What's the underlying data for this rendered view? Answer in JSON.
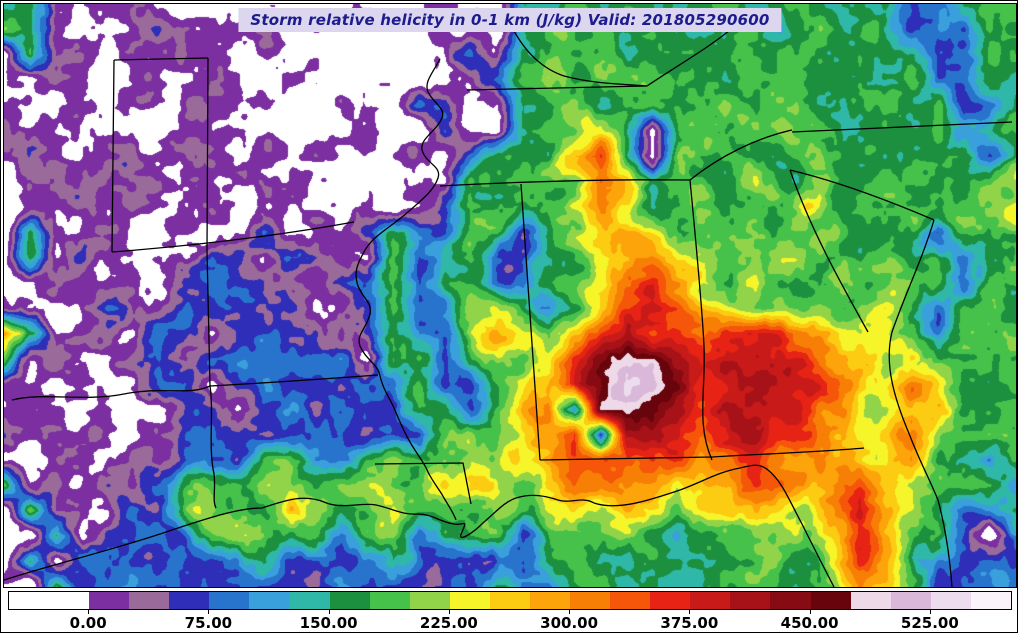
{
  "title": "Storm relative helicity in 0-1 km (J/kg) Valid: 201805290600",
  "chart_data": {
    "type": "heatmap",
    "title": "Storm relative helicity in 0-1 km (J/kg)",
    "valid": "201805290600",
    "units": "J/kg",
    "legend_position": "bottom",
    "colorbar": {
      "vmin": -50,
      "vmax": 575,
      "band_size": 25,
      "tick_labels": [
        "0.00",
        "75.00",
        "150.00",
        "225.00",
        "300.00",
        "375.00",
        "450.00",
        "525.00"
      ],
      "tick_values": [
        0,
        75,
        150,
        225,
        300,
        375,
        450,
        525
      ],
      "colors": [
        "#ffffff",
        "#ffffff",
        "#7b2fa0",
        "#9a6a9a",
        "#2e2eb8",
        "#2874cd",
        "#3aa0dc",
        "#2fb8a8",
        "#1d9040",
        "#46c24a",
        "#91d44a",
        "#f5f52a",
        "#fccc12",
        "#fca40a",
        "#f87f06",
        "#f5560a",
        "#e62314",
        "#c81a18",
        "#a61218",
        "#870b12",
        "#67040c",
        "#edd9e8",
        "#d9b8d9",
        "#ecdcee",
        "#faf3fa"
      ]
    },
    "grid_rows": 24,
    "grid_cols": 40,
    "grid_encoding": "color band indices; helicity value range of band i is (i*25-50) to (i*25-25) J/kg",
    "grid": [
      [
        9,
        9,
        2,
        1,
        2,
        3,
        2,
        1,
        2,
        2,
        1,
        2,
        1,
        1,
        1,
        2,
        2,
        2,
        1,
        1,
        8,
        9,
        9,
        8,
        9,
        9,
        8,
        9,
        9,
        8,
        9,
        9,
        8,
        9,
        9,
        5,
        5,
        9,
        9,
        9
      ],
      [
        9,
        9,
        2,
        1,
        1,
        2,
        3,
        2,
        1,
        2,
        3,
        2,
        1,
        1,
        1,
        1,
        2,
        2,
        2,
        1,
        8,
        9,
        10,
        9,
        8,
        9,
        9,
        8,
        9,
        9,
        8,
        9,
        9,
        8,
        9,
        5,
        5,
        6,
        9,
        9
      ],
      [
        2,
        9,
        2,
        3,
        1,
        2,
        2,
        3,
        2,
        2,
        2,
        1,
        1,
        1,
        1,
        1,
        1,
        2,
        5,
        2,
        8,
        9,
        9,
        10,
        9,
        8,
        9,
        9,
        9,
        8,
        9,
        9,
        8,
        9,
        9,
        9,
        5,
        5,
        9,
        9
      ],
      [
        2,
        2,
        3,
        2,
        2,
        3,
        2,
        2,
        3,
        2,
        1,
        1,
        1,
        1,
        1,
        1,
        1,
        1,
        2,
        5,
        9,
        10,
        9,
        9,
        9,
        9,
        10,
        9,
        8,
        9,
        9,
        8,
        9,
        9,
        9,
        9,
        5,
        6,
        9,
        8
      ],
      [
        3,
        2,
        2,
        3,
        2,
        2,
        2,
        3,
        2,
        2,
        2,
        1,
        1,
        2,
        1,
        1,
        5,
        5,
        1,
        2,
        9,
        9,
        11,
        9,
        10,
        9,
        9,
        9,
        10,
        9,
        9,
        9,
        8,
        9,
        9,
        9,
        9,
        5,
        5,
        9
      ],
      [
        3,
        3,
        2,
        2,
        3,
        2,
        2,
        2,
        2,
        3,
        2,
        2,
        1,
        1,
        2,
        1,
        1,
        5,
        2,
        2,
        9,
        10,
        9,
        12,
        9,
        1,
        9,
        10,
        9,
        9,
        10,
        9,
        9,
        8,
        9,
        9,
        9,
        5,
        9,
        9
      ],
      [
        2,
        3,
        3,
        2,
        2,
        3,
        2,
        2,
        3,
        2,
        2,
        2,
        2,
        1,
        1,
        2,
        2,
        2,
        5,
        9,
        9,
        9,
        14,
        16,
        9,
        1,
        10,
        9,
        9,
        9,
        9,
        10,
        9,
        9,
        9,
        9,
        9,
        9,
        5,
        9
      ],
      [
        2,
        2,
        3,
        3,
        2,
        2,
        3,
        2,
        2,
        2,
        3,
        2,
        2,
        2,
        1,
        1,
        2,
        2,
        9,
        9,
        10,
        9,
        9,
        15,
        12,
        9,
        9,
        10,
        9,
        11,
        9,
        9,
        9,
        9,
        10,
        9,
        9,
        9,
        9,
        11
      ],
      [
        1,
        2,
        2,
        3,
        2,
        3,
        2,
        2,
        3,
        2,
        2,
        2,
        2,
        2,
        2,
        1,
        2,
        5,
        9,
        9,
        9,
        10,
        12,
        14,
        11,
        9,
        9,
        9,
        10,
        9,
        9,
        12,
        9,
        9,
        9,
        10,
        9,
        9,
        9,
        12
      ],
      [
        1,
        9,
        2,
        2,
        3,
        2,
        2,
        3,
        2,
        2,
        5,
        2,
        2,
        2,
        5,
        9,
        5,
        5,
        9,
        9,
        5,
        9,
        10,
        12,
        14,
        12,
        9,
        9,
        9,
        10,
        9,
        9,
        11,
        9,
        9,
        9,
        5,
        9,
        9,
        9
      ],
      [
        2,
        9,
        2,
        3,
        2,
        2,
        3,
        2,
        5,
        5,
        2,
        5,
        5,
        2,
        2,
        9,
        5,
        8,
        9,
        5,
        5,
        9,
        9,
        11,
        13,
        14,
        12,
        10,
        9,
        9,
        10,
        9,
        9,
        9,
        10,
        9,
        9,
        5,
        9,
        9
      ],
      [
        2,
        2,
        3,
        2,
        2,
        3,
        2,
        5,
        5,
        5,
        5,
        2,
        2,
        5,
        5,
        9,
        5,
        9,
        8,
        5,
        5,
        9,
        10,
        12,
        15,
        16,
        14,
        11,
        9,
        10,
        9,
        9,
        10,
        9,
        9,
        11,
        9,
        5,
        9,
        9
      ],
      [
        3,
        2,
        2,
        3,
        5,
        2,
        2,
        5,
        5,
        5,
        5,
        5,
        2,
        2,
        5,
        9,
        5,
        5,
        10,
        11,
        9,
        5,
        9,
        13,
        16,
        17,
        15,
        12,
        10,
        9,
        11,
        10,
        9,
        9,
        11,
        9,
        5,
        9,
        9,
        9
      ],
      [
        13,
        9,
        2,
        2,
        3,
        2,
        5,
        5,
        2,
        5,
        5,
        5,
        5,
        2,
        5,
        9,
        5,
        5,
        11,
        13,
        11,
        10,
        13,
        16,
        18,
        17,
        15,
        14,
        16,
        17,
        16,
        14,
        12,
        11,
        10,
        9,
        5,
        9,
        9,
        9
      ],
      [
        9,
        2,
        3,
        2,
        2,
        3,
        5,
        2,
        5,
        5,
        5,
        5,
        5,
        5,
        2,
        9,
        10,
        5,
        9,
        11,
        10,
        12,
        16,
        19,
        21,
        20,
        18,
        16,
        17,
        18,
        17,
        16,
        14,
        13,
        11,
        13,
        9,
        9,
        9,
        9
      ],
      [
        2,
        2,
        2,
        3,
        2,
        2,
        5,
        5,
        2,
        5,
        5,
        4,
        5,
        5,
        5,
        5,
        9,
        5,
        5,
        9,
        11,
        13,
        17,
        20,
        23,
        22,
        19,
        17,
        18,
        19,
        18,
        17,
        15,
        13,
        12,
        14,
        13,
        9,
        9,
        10
      ],
      [
        2,
        3,
        2,
        2,
        3,
        2,
        2,
        5,
        5,
        2,
        5,
        5,
        5,
        5,
        5,
        5,
        9,
        9,
        5,
        9,
        12,
        14,
        5,
        21,
        22,
        20,
        18,
        17,
        18,
        18,
        17,
        16,
        14,
        12,
        11,
        14,
        12,
        9,
        9,
        9
      ],
      [
        3,
        2,
        2,
        3,
        2,
        2,
        3,
        5,
        5,
        5,
        5,
        5,
        5,
        5,
        5,
        5,
        5,
        9,
        10,
        9,
        11,
        14,
        17,
        5,
        19,
        18,
        17,
        16,
        17,
        18,
        16,
        15,
        13,
        11,
        12,
        15,
        11,
        9,
        10,
        9
      ],
      [
        2,
        2,
        3,
        2,
        2,
        3,
        2,
        5,
        5,
        5,
        9,
        9,
        5,
        5,
        9,
        10,
        9,
        10,
        11,
        10,
        12,
        13,
        16,
        15,
        16,
        17,
        16,
        15,
        16,
        17,
        15,
        14,
        12,
        13,
        11,
        14,
        10,
        9,
        5,
        9
      ],
      [
        9,
        2,
        2,
        3,
        5,
        2,
        5,
        9,
        10,
        9,
        10,
        11,
        9,
        10,
        11,
        9,
        10,
        11,
        12,
        11,
        10,
        12,
        14,
        13,
        15,
        13,
        12,
        13,
        14,
        15,
        14,
        13,
        15,
        16,
        12,
        12,
        9,
        9,
        9,
        5
      ],
      [
        1,
        9,
        2,
        2,
        2,
        5,
        5,
        9,
        11,
        10,
        9,
        12,
        10,
        9,
        10,
        11,
        9,
        10,
        9,
        10,
        9,
        11,
        12,
        11,
        12,
        11,
        10,
        11,
        12,
        13,
        12,
        11,
        14,
        17,
        13,
        11,
        9,
        5,
        5,
        9
      ],
      [
        1,
        1,
        9,
        2,
        5,
        5,
        5,
        5,
        9,
        10,
        11,
        9,
        10,
        5,
        9,
        10,
        5,
        9,
        9,
        9,
        5,
        9,
        10,
        9,
        10,
        9,
        8,
        9,
        10,
        11,
        10,
        9,
        13,
        17,
        14,
        10,
        9,
        5,
        1,
        5
      ],
      [
        1,
        9,
        1,
        5,
        5,
        5,
        5,
        5,
        5,
        5,
        9,
        5,
        5,
        5,
        5,
        9,
        5,
        5,
        5,
        5,
        5,
        8,
        9,
        8,
        9,
        8,
        9,
        8,
        9,
        10,
        9,
        9,
        12,
        16,
        13,
        9,
        5,
        5,
        5,
        5
      ],
      [
        1,
        1,
        9,
        5,
        5,
        5,
        5,
        5,
        5,
        5,
        5,
        5,
        5,
        5,
        5,
        5,
        5,
        5,
        5,
        8,
        5,
        5,
        8,
        9,
        8,
        9,
        8,
        9,
        8,
        9,
        8,
        9,
        11,
        15,
        12,
        9,
        5,
        5,
        5,
        5
      ]
    ]
  },
  "map_overlay": {
    "stroke": "#000000",
    "paths": [
      "M 110,56 L 108,248",
      "M 110,56 L 204,54",
      "M 204,54 L 203,247 L 206,382",
      "M 108,248 C 160,244 250,236 350,218",
      "M 8,396 C 40,388 80,398 120,390 C 160,382 185,392 206,382",
      "M 206,382 C 260,379 320,375 374,371",
      "M 206,382 C 210,410 204,442 210,470 C 212,486 208,496 212,504",
      "M 436,55 C 428,70 420,78 424,88 C 430,100 442,104 438,114 C 432,128 416,134 418,146 C 422,160 438,162 434,174 C 430,186 420,194 404,208 C 386,224 368,232 360,248 C 352,262 350,270 354,282 C 360,296 368,298 366,310 C 362,326 352,330 356,342 C 362,356 374,360 376,372 C 380,388 386,394 390,404 C 396,418 400,428 406,438 C 414,452 420,458 424,468 C 430,480 436,486 440,494 C 446,504 450,510 452,516",
      "M 436,182 C 510,178 600,175 686,176",
      "M 463,86 L 643,82",
      "M 500,6 C 512,36 530,62 560,72 C 590,80 620,80 643,82",
      "M 517,180 L 536,456",
      "M 686,176 C 692,240 698,300 700,342 C 702,386 692,420 708,456",
      "M 371,460 L 459,459 L 467,500",
      "M 536,456 L 709,453",
      "M 709,453 C 756,450 816,448 860,444",
      "M 786,166 C 806,224 836,278 864,328",
      "M 786,166 C 836,178 888,198 930,216",
      "M 686,176 C 716,152 752,134 788,126",
      "M 788,128 L 1008,118",
      "M 643,82 C 676,60 704,44 726,26",
      "M 0,576 C 56,558 110,546 168,526 C 210,512 236,504 258,504 C 282,496 300,490 320,498 C 338,506 356,498 372,501 C 390,505 398,511 414,510 C 428,510 436,518 450,520 C 460,522 464,514 458,528 C 452,540 468,530 480,518 C 492,508 500,498 512,494 C 528,489 542,492 554,496 C 566,500 578,492 590,499 C 614,507 646,496 676,486 C 698,478 714,468 736,464 C 748,461 756,459 764,466 C 778,477 786,498 798,520 C 810,544 820,564 830,583",
      "M 930,216 C 918,256 902,288 888,328 C 880,360 890,394 906,432 C 916,458 926,476 934,496 C 942,526 946,556 948,583"
    ]
  }
}
